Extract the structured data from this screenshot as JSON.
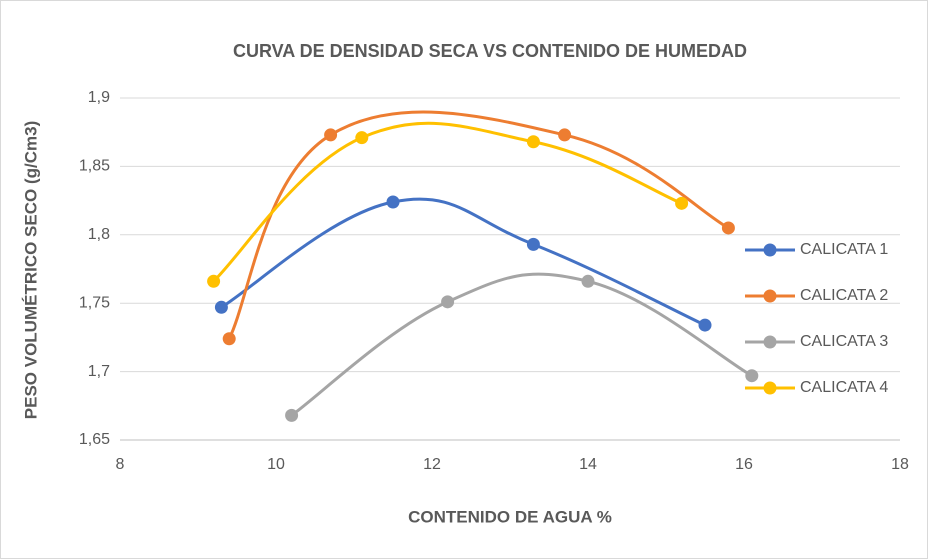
{
  "chart_data": {
    "type": "scatter",
    "title": "CURVA DE DENSIDAD SECA VS CONTENIDO DE HUMEDAD",
    "x_label": "CONTENIDO DE AGUA %",
    "y_label": "PESO VOLUMÉTRICO SECO (g/Cm3)",
    "smooth": true,
    "grid": true,
    "legend": "right",
    "xlim": [
      8,
      18
    ],
    "xticks": [
      8,
      10,
      12,
      14,
      16,
      18
    ],
    "ylim": [
      1.65,
      1.9
    ],
    "yticks": [
      {
        "value": 1.65,
        "label": "1,65"
      },
      {
        "value": 1.7,
        "label": "1,7"
      },
      {
        "value": 1.75,
        "label": "1,75"
      },
      {
        "value": 1.8,
        "label": "1,8"
      },
      {
        "value": 1.85,
        "label": "1,85"
      },
      {
        "value": 1.9,
        "label": "1,9"
      }
    ],
    "series": [
      {
        "name": "CALICATA 1",
        "color": "#4472c4",
        "x": [
          9.3,
          11.5,
          13.3,
          15.5
        ],
        "values": [
          1.747,
          1.824,
          1.793,
          1.734
        ]
      },
      {
        "name": "CALICATA 2",
        "color": "#ed7d31",
        "x": [
          9.4,
          10.7,
          13.7,
          15.8
        ],
        "values": [
          1.724,
          1.873,
          1.873,
          1.805
        ]
      },
      {
        "name": "CALICATA 3",
        "color": "#a5a5a5",
        "x": [
          10.2,
          12.2,
          14.0,
          16.1
        ],
        "values": [
          1.668,
          1.751,
          1.766,
          1.697
        ]
      },
      {
        "name": "CALICATA 4",
        "color": "#ffc000",
        "x": [
          9.2,
          11.1,
          13.3,
          15.2
        ],
        "values": [
          1.766,
          1.871,
          1.868,
          1.823
        ]
      }
    ]
  }
}
